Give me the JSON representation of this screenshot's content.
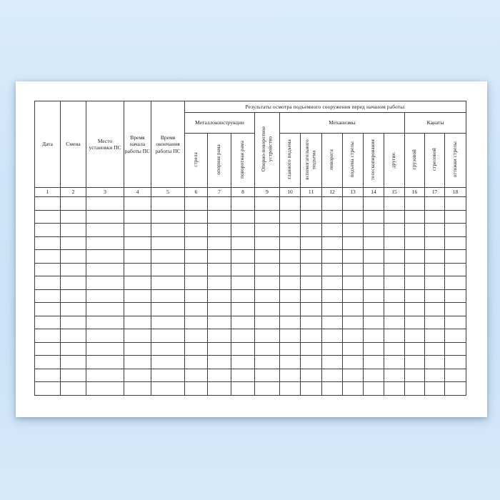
{
  "table": {
    "span_title": "Результаты осмотра подъемного сооружения перед началом работы:",
    "left_columns": [
      {
        "label": "Дата",
        "num": "1"
      },
      {
        "label": "Смена",
        "num": "2"
      },
      {
        "label": "Место установки ПС",
        "num": "3"
      },
      {
        "label": "Время начала работы ПС",
        "num": "4"
      },
      {
        "label": "Время окончания работы ПС",
        "num": "5"
      }
    ],
    "groups": {
      "metal": "Металлоконструкции",
      "mechanisms": "Механизмы",
      "ropes": "Канаты"
    },
    "metal_columns": [
      {
        "label": "стрела",
        "num": "6"
      },
      {
        "label": "опорная рама",
        "num": "7"
      },
      {
        "label": "поворотная рама",
        "num": "8"
      }
    ],
    "slewing_column": {
      "label": "Опорно-поворотное\nустройство",
      "num": "9"
    },
    "mech_columns": [
      {
        "label": "главного подъема",
        "num": "10"
      },
      {
        "label": "вспомогательного\nподъема",
        "num": "11"
      },
      {
        "label": "поворота",
        "num": "12"
      },
      {
        "label": "подъема стрелы",
        "num": "13"
      },
      {
        "label": "телескопирования",
        "num": "14"
      },
      {
        "label": "другие.",
        "num": "15"
      }
    ],
    "rope_columns": [
      {
        "label": "грузовой",
        "num": "16"
      },
      {
        "label": "стреловой",
        "num": "17"
      },
      {
        "label": "оттяжки стрелы",
        "num": "18"
      }
    ],
    "column_count": 18,
    "empty_rows": 15
  }
}
